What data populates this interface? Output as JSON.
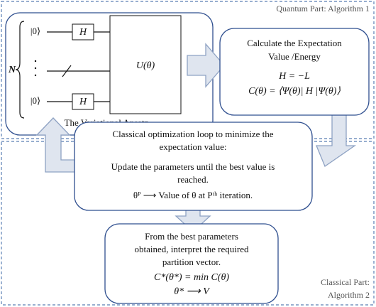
{
  "regions": {
    "quantum": {
      "label": "Quantum Part: Algorithm 1"
    },
    "classical": {
      "label": [
        "Classical Part:",
        "Algorithm 2"
      ]
    }
  },
  "ansatz": {
    "caption": "The Variational Ansatz",
    "register": "N",
    "ket_top": "|0⟩",
    "ket_bottom": "|0⟩",
    "gate_top": "H",
    "gate_bottom": "H",
    "unitary": "U(θ)"
  },
  "expectation": {
    "lines": [
      "Calculate the Expectation",
      "Value /Energy",
      "H = −L",
      "C(θ) = ⟨Ψ(θ)| H |Ψ(θ)⟩"
    ]
  },
  "optimization": {
    "lines": [
      "Classical optimization loop to minimize the",
      "expectation value:",
      "Update the parameters until the best value is",
      "reached.",
      "θᴾ ⟶ Value of θ at Pᵗʰ iteration."
    ]
  },
  "result": {
    "lines": [
      "From the best parameters",
      "obtained, interpret the required",
      "partition vector.",
      "C*(θ*) = min C(θ)",
      "θ* ⟶ V"
    ]
  }
}
